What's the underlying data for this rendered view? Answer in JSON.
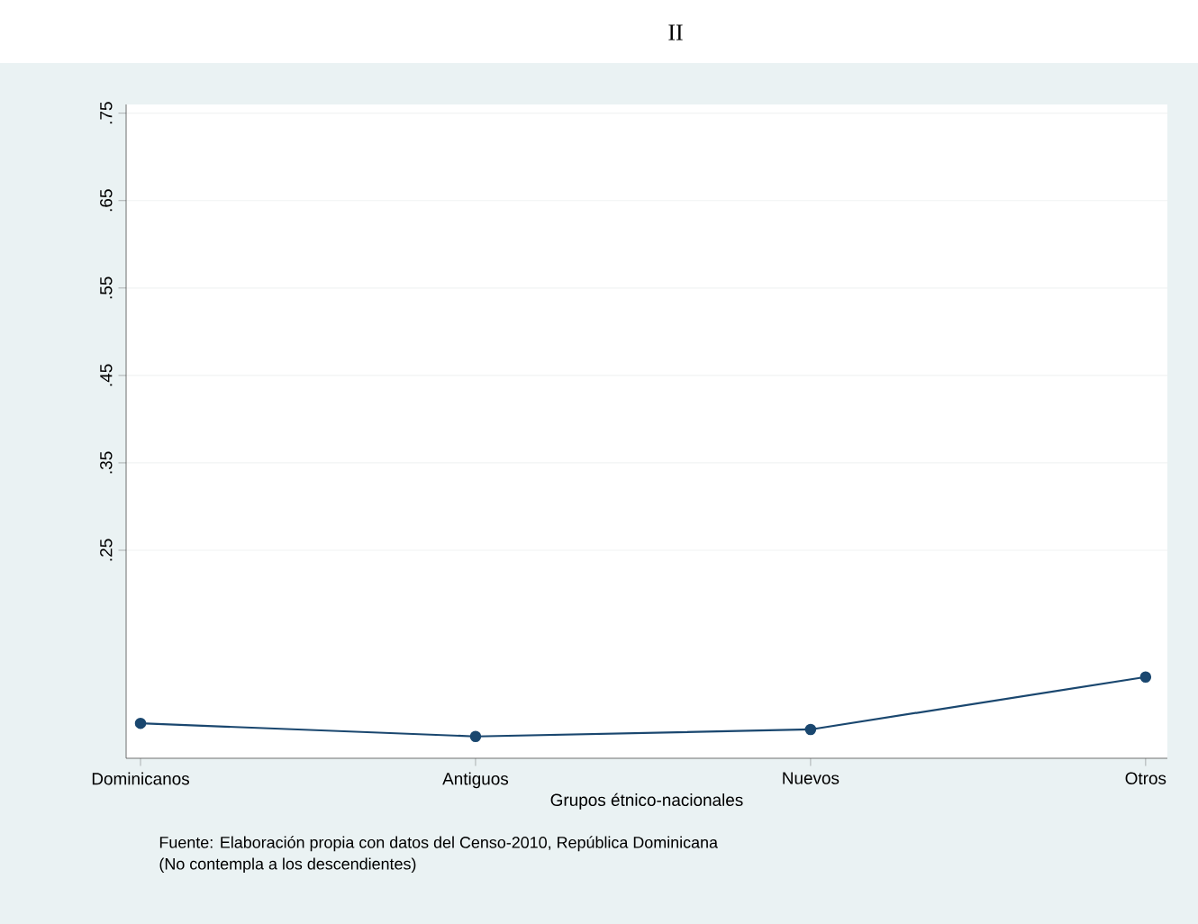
{
  "chart_data": {
    "type": "line",
    "title": "II",
    "xlabel": "Grupos étnico-nacionales",
    "categories": [
      "Dominicanos",
      "Antiguos",
      "Nuevos",
      "Otros"
    ],
    "series": [
      {
        "color": "#1a476f",
        "values": [
          0.052,
          0.037,
          0.045,
          0.105
        ]
      }
    ],
    "ylim": [
      0.012,
      0.76
    ],
    "yticks": [
      {
        "value": 0.25,
        "label": ".25"
      },
      {
        "value": 0.35,
        "label": ".35"
      },
      {
        "value": 0.45,
        "label": ".45"
      },
      {
        "value": 0.55,
        "label": ".55"
      },
      {
        "value": 0.65,
        "label": ".65"
      },
      {
        "value": 0.75,
        "label": ".75"
      }
    ],
    "grid": "y",
    "marker": "circle",
    "line_style": "solid",
    "annotations": [
      "Fuente: Elaboración propia con datos del Censo-2010, República Dominicana",
      "(No contempla a los descendientes)"
    ]
  }
}
